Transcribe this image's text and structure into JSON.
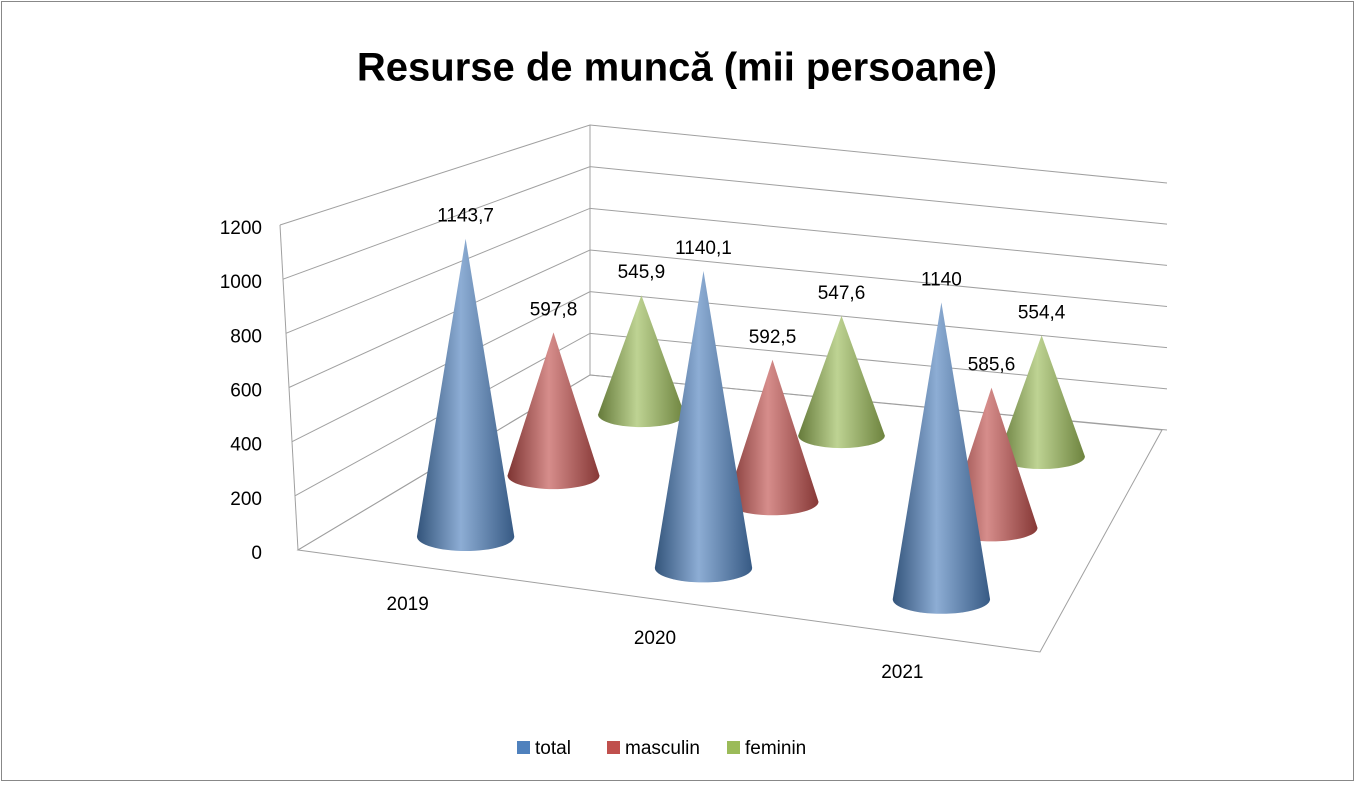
{
  "chart_data": {
    "type": "cone3d",
    "title": "Resurse de muncă (mii persoane)",
    "categories": [
      "2019",
      "2020",
      "2021"
    ],
    "series": [
      {
        "name": "total",
        "color": "#4f81bd",
        "values": [
          1143.7,
          1140.1,
          1140
        ],
        "value_labels": [
          "1143,7",
          "1140,1",
          "1140"
        ]
      },
      {
        "name": "masculin",
        "color": "#c0504d",
        "values": [
          597.8,
          592.5,
          585.6
        ],
        "value_labels": [
          "597,8",
          "592,5",
          "585,6"
        ]
      },
      {
        "name": "feminin",
        "color": "#9bbb59",
        "values": [
          545.9,
          547.6,
          554.4
        ],
        "value_labels": [
          "545,9",
          "547,6",
          "554,4"
        ]
      }
    ],
    "ylim": [
      0,
      1200
    ],
    "yticks": [
      0,
      200,
      400,
      600,
      800,
      1000,
      1200
    ],
    "grid": true,
    "legend": "bottom"
  }
}
